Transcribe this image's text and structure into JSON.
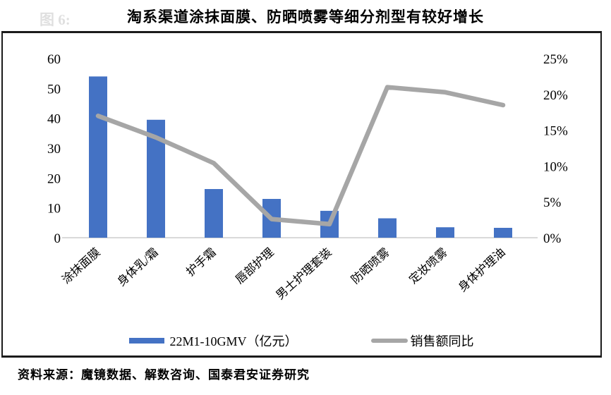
{
  "figure_label": "图 6:",
  "title": "淘系渠道涂抹面膜、防晒喷雾等细分剂型有较好增长",
  "source": "资料来源：魔镜数据、解数咨询、国泰君安证券研究",
  "colors": {
    "bar": "#4472C4",
    "line": "#A6A6A6",
    "baseline": "#D9D9D9",
    "frame": "#1B1B1B"
  },
  "legend": [
    {
      "type": "bar",
      "label": "22M1-10GMV（亿元）",
      "color": "#4472C4"
    },
    {
      "type": "line",
      "label": "销售额同比",
      "color": "#A6A6A6"
    }
  ],
  "chart_data": {
    "type": "bar",
    "subtype": "bar+line-combo",
    "title": "淘系渠道涂抹面膜、防晒喷雾等细分剂型有较好增长",
    "categories": [
      "涂抹面膜",
      "身体乳/霜",
      "护手霜",
      "唇部护理",
      "男士护理套装",
      "防晒喷雾",
      "定妆喷雾",
      "身体护理油"
    ],
    "series": [
      {
        "name": "22M1-10GMV（亿元）",
        "type": "bar",
        "axis": "left",
        "values": [
          54,
          39.5,
          16.3,
          13,
          9,
          6.5,
          3.5,
          3.3
        ]
      },
      {
        "name": "销售额同比",
        "type": "line",
        "axis": "right",
        "unit": "%",
        "values": [
          17,
          14,
          10.4,
          2.6,
          1.9,
          21,
          20.3,
          18.5
        ]
      }
    ],
    "left_axis": {
      "min": 0,
      "max": 60,
      "ticks": [
        "0",
        "10",
        "20",
        "30",
        "40",
        "50",
        "60"
      ]
    },
    "right_axis": {
      "min": 0,
      "max": 25,
      "ticks": [
        "0%",
        "5%",
        "10%",
        "15%",
        "20%",
        "25%"
      ]
    },
    "grid": "off",
    "legend_position": "bottom"
  }
}
